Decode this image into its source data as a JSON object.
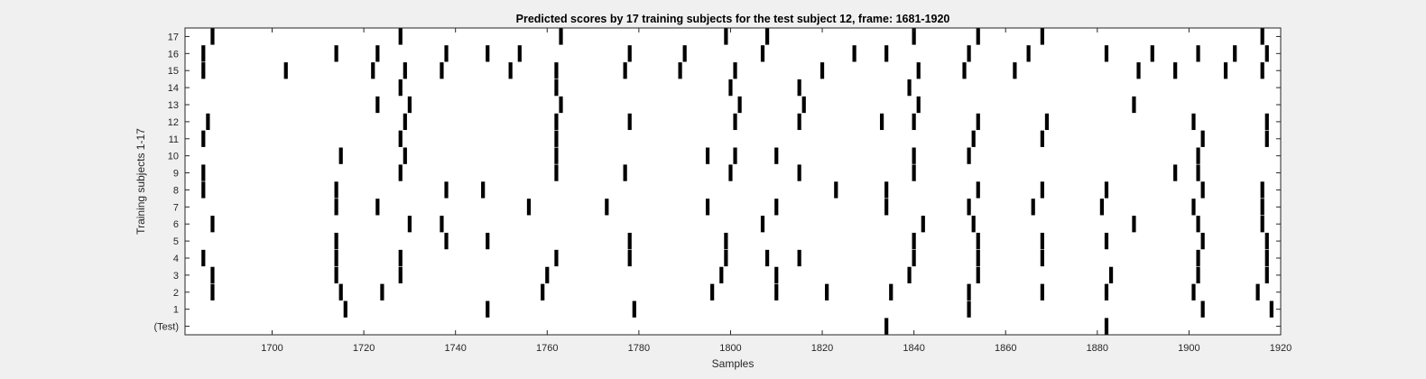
{
  "chart_data": {
    "type": "scatter",
    "title": "Predicted scores by 17 training subjects for the test subject 12, frame: 1681-1920",
    "xlabel": "Samples",
    "ylabel": "Training subjects 1-17",
    "xlim": [
      1681,
      1920
    ],
    "xticks": [
      1700,
      1720,
      1740,
      1760,
      1780,
      1800,
      1820,
      1840,
      1860,
      1880,
      1900,
      1920
    ],
    "ylim": [
      -0.5,
      17.5
    ],
    "yticks": [
      0,
      1,
      2,
      3,
      4,
      5,
      6,
      7,
      8,
      9,
      10,
      11,
      12,
      13,
      14,
      15,
      16,
      17
    ],
    "ytick_labels": [
      "(Test)",
      "1",
      "2",
      "3",
      "4",
      "5",
      "6",
      "7",
      "8",
      "9",
      "10",
      "11",
      "12",
      "13",
      "14",
      "15",
      "16",
      "17"
    ],
    "grid": false,
    "marker": "vertical-bar",
    "colors": {
      "marker": "#000000",
      "plot_bg": "#ffffff",
      "figure_bg": "#f0f0f0",
      "axes": "#262626"
    },
    "series": [
      {
        "y": 17,
        "x": [
          1687,
          1728,
          1763,
          1799,
          1808,
          1840,
          1854,
          1868,
          1916
        ]
      },
      {
        "y": 16,
        "x": [
          1685,
          1714,
          1723,
          1738,
          1747,
          1754,
          1778,
          1790,
          1807,
          1827,
          1834,
          1852,
          1865,
          1882,
          1892,
          1902,
          1910,
          1917
        ]
      },
      {
        "y": 15,
        "x": [
          1685,
          1703,
          1722,
          1729,
          1737,
          1752,
          1762,
          1777,
          1789,
          1801,
          1820,
          1841,
          1851,
          1862,
          1889,
          1897,
          1908,
          1916
        ]
      },
      {
        "y": 14,
        "x": [
          1728,
          1762,
          1800,
          1815,
          1839
        ]
      },
      {
        "y": 13,
        "x": [
          1723,
          1730,
          1763,
          1802,
          1816,
          1841,
          1888
        ]
      },
      {
        "y": 12,
        "x": [
          1686,
          1729,
          1762,
          1778,
          1801,
          1815,
          1833,
          1840,
          1854,
          1869,
          1901,
          1917
        ]
      },
      {
        "y": 11,
        "x": [
          1685,
          1728,
          1762,
          1853,
          1868,
          1903,
          1917
        ]
      },
      {
        "y": 10,
        "x": [
          1715,
          1729,
          1762,
          1795,
          1801,
          1810,
          1840,
          1852,
          1902
        ]
      },
      {
        "y": 9,
        "x": [
          1685,
          1728,
          1762,
          1777,
          1800,
          1815,
          1840,
          1897,
          1902
        ]
      },
      {
        "y": 8,
        "x": [
          1685,
          1714,
          1738,
          1746,
          1823,
          1834,
          1854,
          1868,
          1882,
          1903,
          1916
        ]
      },
      {
        "y": 7,
        "x": [
          1714,
          1723,
          1756,
          1773,
          1795,
          1810,
          1834,
          1852,
          1866,
          1881,
          1901,
          1916
        ]
      },
      {
        "y": 6,
        "x": [
          1687,
          1730,
          1737,
          1807,
          1842,
          1853,
          1888,
          1902,
          1916
        ]
      },
      {
        "y": 5,
        "x": [
          1714,
          1738,
          1747,
          1778,
          1799,
          1840,
          1854,
          1868,
          1882,
          1903,
          1917
        ]
      },
      {
        "y": 4,
        "x": [
          1685,
          1714,
          1728,
          1762,
          1778,
          1799,
          1808,
          1815,
          1840,
          1854,
          1868,
          1902,
          1917
        ]
      },
      {
        "y": 3,
        "x": [
          1687,
          1714,
          1728,
          1760,
          1798,
          1810,
          1839,
          1854,
          1883,
          1902,
          1917
        ]
      },
      {
        "y": 2,
        "x": [
          1687,
          1715,
          1724,
          1759,
          1796,
          1810,
          1821,
          1835,
          1852,
          1868,
          1882,
          1901,
          1915
        ]
      },
      {
        "y": 1,
        "x": [
          1716,
          1747,
          1779,
          1852,
          1903,
          1918
        ]
      },
      {
        "y": 0,
        "x": [
          1834,
          1882
        ]
      }
    ]
  }
}
